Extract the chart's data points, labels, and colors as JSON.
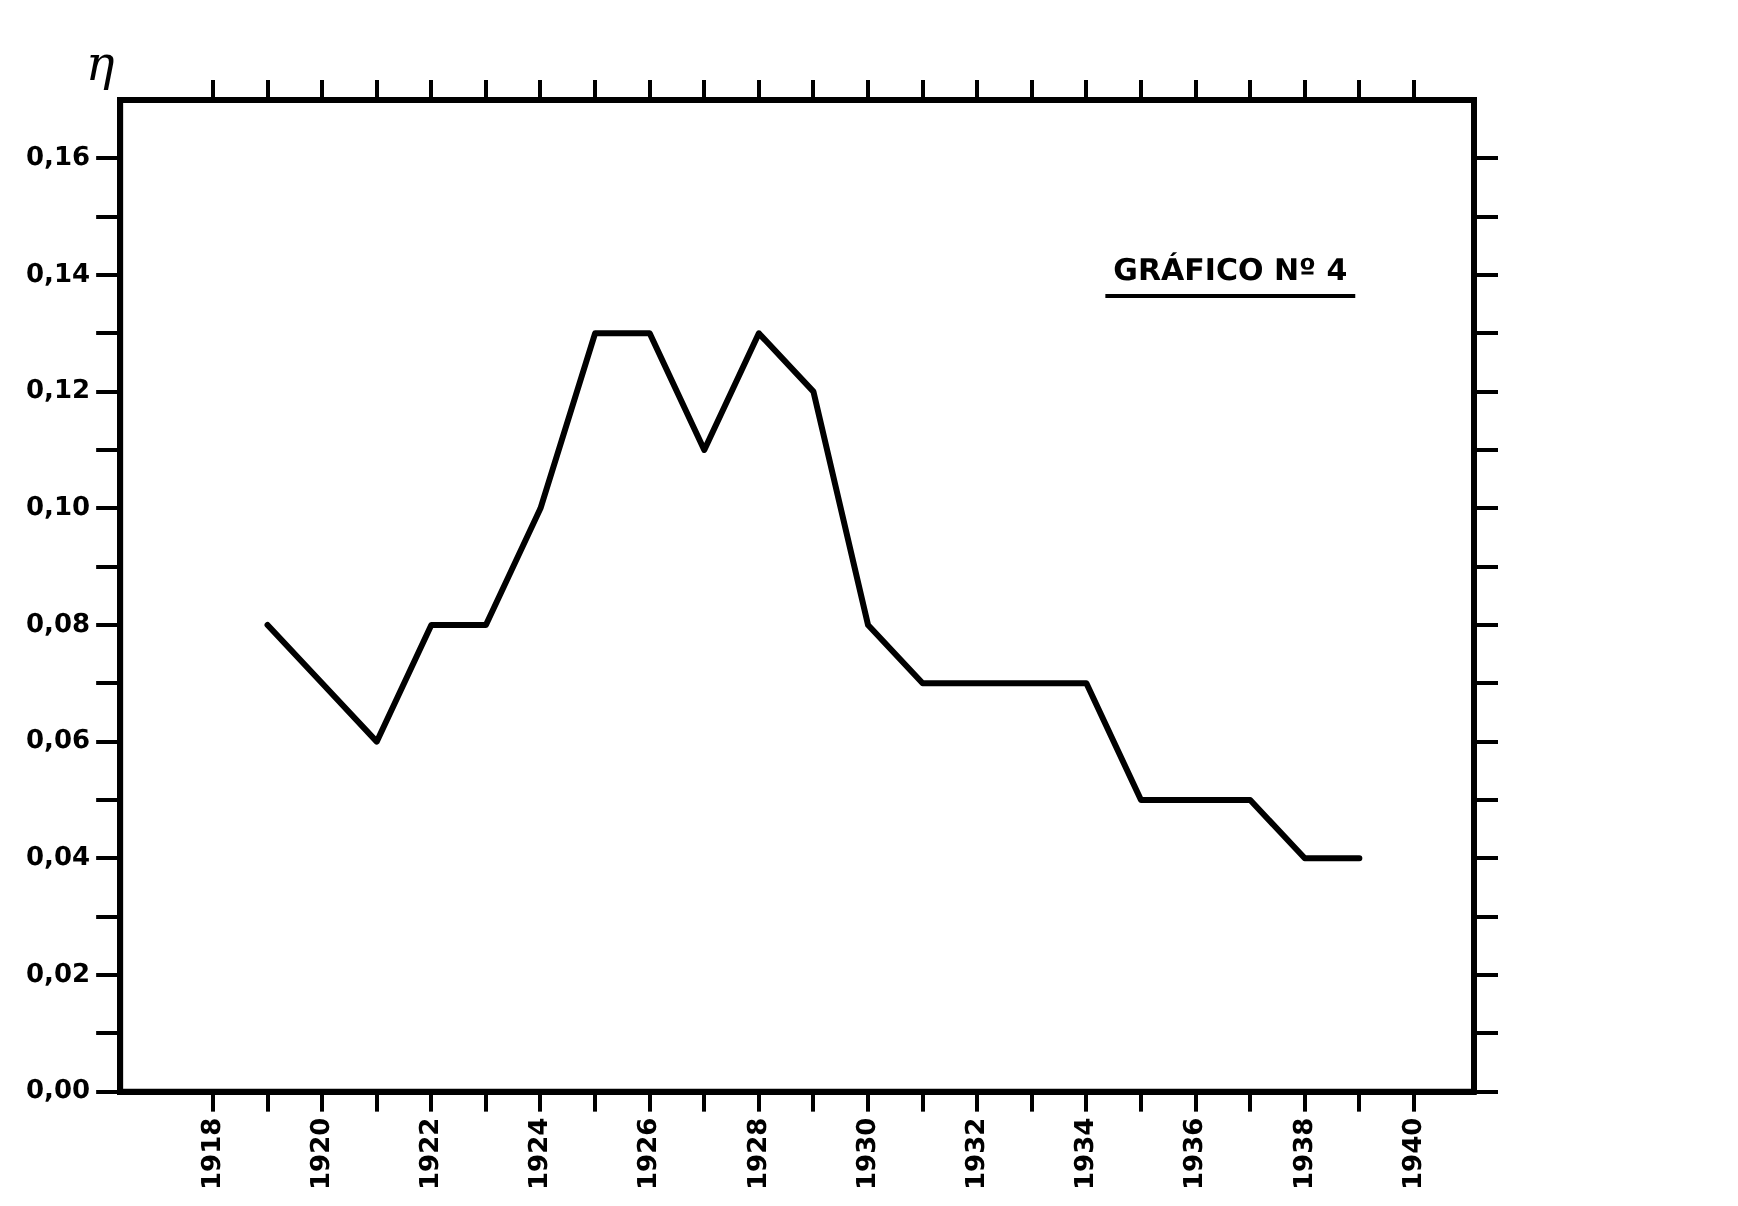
{
  "chart_data": {
    "type": "line",
    "ylabel": "η",
    "annotations": [
      "GRÁFICO Nº 4"
    ],
    "x": [
      1919,
      1920,
      1921,
      1922,
      1923,
      1924,
      1925,
      1926,
      1927,
      1928,
      1929,
      1930,
      1931,
      1932,
      1933,
      1934,
      1935,
      1936,
      1937,
      1938,
      1939
    ],
    "series": [
      {
        "color": "#000000",
        "values": [
          0.08,
          0.07,
          0.06,
          0.08,
          0.08,
          0.1,
          0.13,
          0.13,
          0.11,
          0.13,
          0.12,
          0.08,
          0.07,
          0.07,
          0.07,
          0.07,
          0.05,
          0.05,
          0.05,
          0.04,
          0.04
        ]
      }
    ],
    "xlim": [
      1916.3,
      1941.1
    ],
    "xticks": [
      1918,
      {
        "value": 1919,
        "label": null
      },
      1920,
      {
        "value": 1921,
        "label": null
      },
      1922,
      {
        "value": 1923,
        "label": null
      },
      1924,
      {
        "value": 1925,
        "label": null
      },
      1926,
      {
        "value": 1927,
        "label": null
      },
      1928,
      {
        "value": 1929,
        "label": null
      },
      1930,
      {
        "value": 1931,
        "label": null
      },
      1932,
      {
        "value": 1933,
        "label": null
      },
      1934,
      {
        "value": 1935,
        "label": null
      },
      1936,
      {
        "value": 1937,
        "label": null
      },
      1938,
      {
        "value": 1939,
        "label": null
      },
      1940
    ],
    "ylim": [
      0,
      0.17
    ],
    "yticks": [
      {
        "value": 0,
        "label": "0,00"
      },
      {
        "value": 0.01,
        "label": null
      },
      {
        "value": 0.02,
        "label": "0,02"
      },
      {
        "value": 0.03,
        "label": null
      },
      {
        "value": 0.04,
        "label": "0,04"
      },
      {
        "value": 0.05,
        "label": null
      },
      {
        "value": 0.06,
        "label": "0,06"
      },
      {
        "value": 0.07,
        "label": null
      },
      {
        "value": 0.08,
        "label": "0,08"
      },
      {
        "value": 0.09,
        "label": null
      },
      {
        "value": 0.1,
        "label": "0,10"
      },
      {
        "value": 0.11,
        "label": null
      },
      {
        "value": 0.12,
        "label": "0,12"
      },
      {
        "value": 0.13,
        "label": null
      },
      {
        "value": 0.14,
        "label": "0,14"
      },
      {
        "value": 0.15,
        "label": null
      },
      {
        "value": 0.16,
        "label": "0,16"
      }
    ],
    "grid": false,
    "legend": false,
    "marker": "none",
    "line_style": "solid"
  }
}
